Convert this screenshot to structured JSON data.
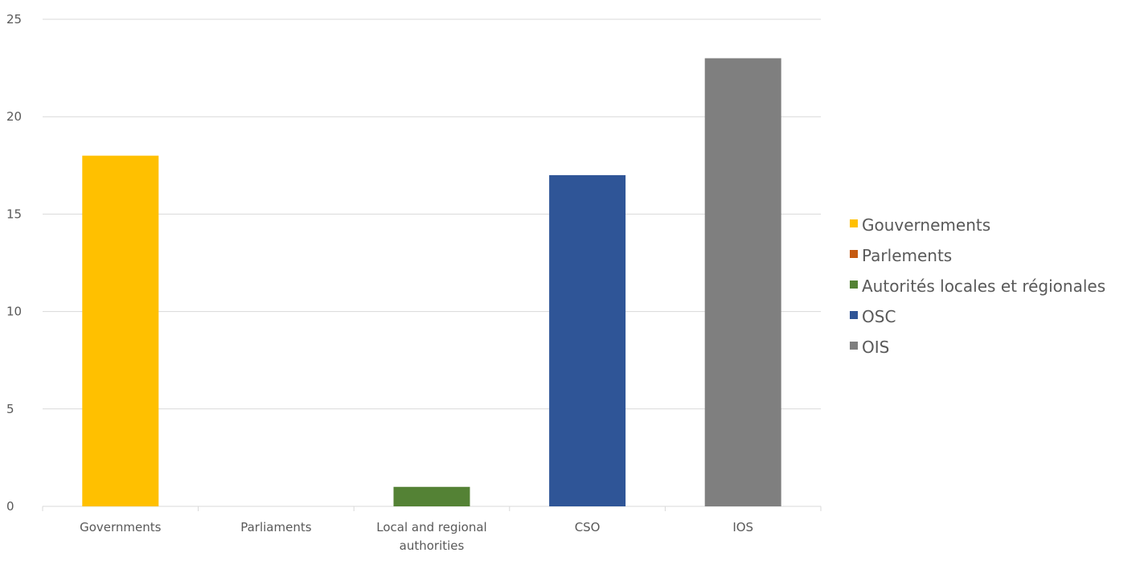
{
  "chart_data": {
    "type": "bar",
    "categories": [
      "Governments",
      "Parliaments",
      "Local and regional authorities",
      "CSO",
      "IOS"
    ],
    "category_label_lines": [
      [
        "Governments"
      ],
      [
        "Parliaments"
      ],
      [
        "Local and regional",
        "authorities"
      ],
      [
        "CSO"
      ],
      [
        "IOS"
      ]
    ],
    "values": [
      18,
      0,
      1,
      17,
      23
    ],
    "colors": [
      "#FFC000",
      "#C55A11",
      "#548235",
      "#2F5597",
      "#7F7F7F"
    ],
    "ylim": [
      0,
      25
    ],
    "yticks": [
      0,
      5,
      10,
      15,
      20,
      25
    ],
    "grid": true,
    "legend_position": "right",
    "legend": [
      {
        "label": "Gouvernements",
        "color": "#FFC000"
      },
      {
        "label": "Parlements",
        "color": "#C55A11"
      },
      {
        "label": "Autorités locales et régionales",
        "color": "#548235"
      },
      {
        "label": "OSC",
        "color": "#2F5597"
      },
      {
        "label": "OIS",
        "color": "#7F7F7F"
      }
    ],
    "title": "",
    "xlabel": "",
    "ylabel": ""
  }
}
